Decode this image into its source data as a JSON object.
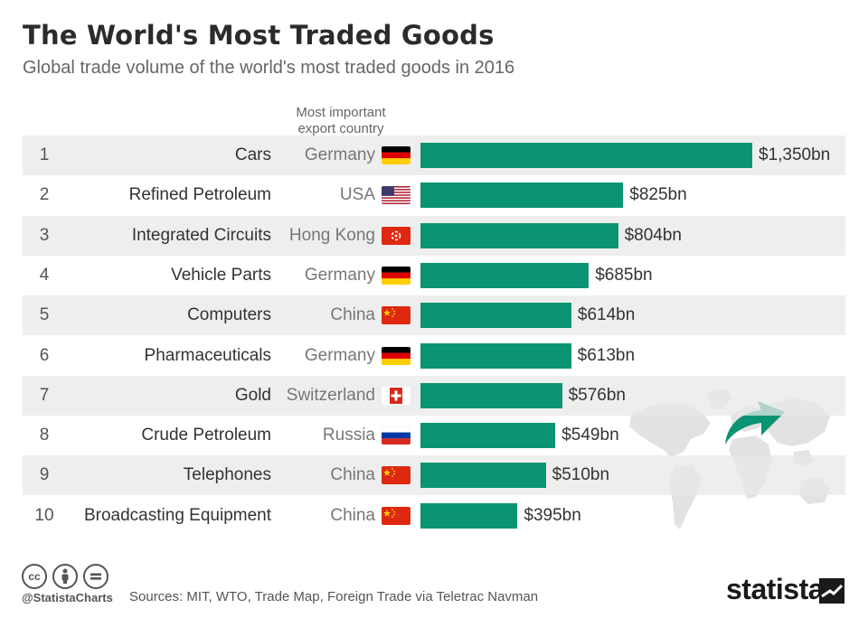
{
  "title": "The World's Most Traded Goods",
  "subtitle": "Global trade volume of the world's most traded goods in 2016",
  "column_header": [
    "Most important",
    "export country"
  ],
  "chart_data": {
    "type": "bar",
    "orientation": "horizontal",
    "title": "The World's Most Traded Goods",
    "subtitle": "Global trade volume of the world's most traded goods in 2016",
    "unit": "billion US$",
    "bar_color": "#0a9473",
    "categories": [
      "Cars",
      "Refined Petroleum",
      "Integrated Circuits",
      "Vehicle Parts",
      "Computers",
      "Pharmaceuticals",
      "Gold",
      "Crude Petroleum",
      "Telephones",
      "Broadcasting Equipment"
    ],
    "values": [
      1350,
      825,
      804,
      685,
      614,
      613,
      576,
      549,
      510,
      395
    ],
    "value_labels": [
      "$1,350bn",
      "$825bn",
      "$804bn",
      "$685bn",
      "$614bn",
      "$613bn",
      "$576bn",
      "$549bn",
      "$510bn",
      "$395bn"
    ],
    "ranks": [
      "1",
      "2",
      "3",
      "4",
      "5",
      "6",
      "7",
      "8",
      "9",
      "10"
    ],
    "countries": [
      "Germany",
      "USA",
      "Hong Kong",
      "Germany",
      "China",
      "Germany",
      "Switzerland",
      "Russia",
      "China",
      "China"
    ],
    "flags": [
      "germany-flag",
      "usa-flag",
      "hong-kong-flag",
      "germany-flag",
      "china-flag",
      "germany-flag",
      "switzerland-flag",
      "russia-flag",
      "china-flag",
      "china-flag"
    ],
    "xlim": [
      0,
      1350
    ],
    "grid": false,
    "legend": "none"
  },
  "footer": {
    "handle": "@StatistaCharts",
    "sources": "Sources:  MIT, WTO, Trade Map, Foreign Trade via Teletrac Navman",
    "brand": "statista",
    "license_icons": [
      "cc-icon",
      "attribution-icon",
      "no-derivatives-icon"
    ]
  },
  "colors": {
    "bar": "#0a9473",
    "row_shade": "#e8e8e8",
    "map": "#e2e2e2",
    "arrow": "#0a9473"
  }
}
